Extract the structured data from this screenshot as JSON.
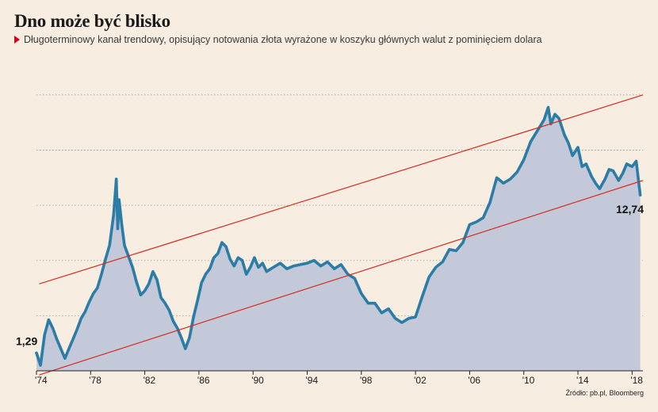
{
  "header": {
    "title": "Dno może być blisko",
    "subtitle": "Długoterminowy kanał trendowy, opisujący notowania złota wyrażone w koszyku głównych walut z pominięciem dolara"
  },
  "footer": {
    "source": "Źródło: pb.pl, Bloomberg"
  },
  "chart_data": {
    "type": "area",
    "title": "Dno może być blisko",
    "xlabel": "",
    "ylabel": "",
    "grid": true,
    "y_axis_labels_shown": false,
    "xlim": [
      1974.0,
      2018.8
    ],
    "ylim": [
      0,
      22
    ],
    "x_ticks": [
      {
        "x": 1974,
        "label": "'74"
      },
      {
        "x": 1978,
        "label": "'78"
      },
      {
        "x": 1982,
        "label": "'82"
      },
      {
        "x": 1986,
        "label": "'86"
      },
      {
        "x": 1990,
        "label": "'90"
      },
      {
        "x": 1994,
        "label": "'94"
      },
      {
        "x": 1998,
        "label": "'98"
      },
      {
        "x": 2002,
        "label": "'02"
      },
      {
        "x": 2006,
        "label": "'06"
      },
      {
        "x": 2010,
        "label": "'10"
      },
      {
        "x": 2014,
        "label": "'14"
      },
      {
        "x": 2018,
        "label": "'18"
      }
    ],
    "y_gridlines": [
      0,
      4,
      8,
      12,
      16,
      20
    ],
    "annotations": [
      {
        "x": 1974.0,
        "y": 1.29,
        "text": "1,29"
      },
      {
        "x": 2018.6,
        "y": 12.74,
        "text": "12,74"
      }
    ],
    "series": [
      {
        "color": "#2b7ca6",
        "fill": "#c3c9d8",
        "x": [
          1974.0,
          1974.3,
          1974.6,
          1974.9,
          1975.2,
          1975.5,
          1975.8,
          1976.1,
          1976.4,
          1976.7,
          1977.0,
          1977.3,
          1977.6,
          1977.9,
          1978.2,
          1978.5,
          1978.8,
          1979.1,
          1979.4,
          1979.7,
          1979.9,
          1980.0,
          1980.1,
          1980.3,
          1980.5,
          1980.8,
          1981.1,
          1981.4,
          1981.7,
          1982.0,
          1982.3,
          1982.6,
          1982.9,
          1983.2,
          1983.5,
          1983.8,
          1984.1,
          1984.4,
          1984.7,
          1985.0,
          1985.3,
          1985.6,
          1985.9,
          1986.2,
          1986.5,
          1986.8,
          1987.1,
          1987.4,
          1987.7,
          1988.0,
          1988.3,
          1988.6,
          1988.9,
          1989.2,
          1989.5,
          1989.8,
          1990.1,
          1990.4,
          1990.7,
          1991.0,
          1991.5,
          1992.0,
          1992.5,
          1993.0,
          1993.5,
          1994.0,
          1994.5,
          1995.0,
          1995.5,
          1996.0,
          1996.5,
          1997.0,
          1997.5,
          1998.0,
          1998.5,
          1999.0,
          1999.5,
          2000.0,
          2000.5,
          2001.0,
          2001.5,
          2002.0,
          2002.5,
          2003.0,
          2003.5,
          2004.0,
          2004.5,
          2005.0,
          2005.5,
          2006.0,
          2006.5,
          2007.0,
          2007.5,
          2008.0,
          2008.5,
          2009.0,
          2009.5,
          2010.0,
          2010.5,
          2011.0,
          2011.5,
          2011.8,
          2012.0,
          2012.3,
          2012.6,
          2013.0,
          2013.3,
          2013.6,
          2014.0,
          2014.3,
          2014.6,
          2015.0,
          2015.3,
          2015.6,
          2016.0,
          2016.3,
          2016.6,
          2017.0,
          2017.3,
          2017.6,
          2018.0,
          2018.3,
          2018.6
        ],
        "y": [
          1.29,
          0.4,
          2.6,
          3.7,
          3.1,
          2.3,
          1.6,
          0.9,
          1.6,
          2.3,
          3.0,
          3.8,
          4.3,
          5.0,
          5.6,
          6.0,
          7.0,
          8.1,
          9.1,
          11.3,
          13.9,
          10.3,
          12.4,
          10.6,
          9.1,
          8.3,
          7.5,
          6.4,
          5.5,
          5.8,
          6.3,
          7.2,
          6.6,
          5.3,
          4.9,
          4.4,
          3.6,
          3.1,
          2.4,
          1.6,
          2.4,
          3.9,
          5.1,
          6.4,
          7.0,
          7.4,
          8.2,
          8.5,
          9.3,
          9.0,
          8.1,
          7.6,
          8.2,
          8.0,
          7.0,
          7.5,
          8.2,
          7.5,
          7.8,
          7.2,
          7.5,
          7.8,
          7.4,
          7.6,
          7.7,
          7.8,
          8.0,
          7.6,
          7.9,
          7.4,
          7.7,
          7.0,
          6.7,
          5.6,
          4.9,
          4.9,
          4.2,
          4.5,
          3.8,
          3.5,
          3.8,
          3.9,
          5.4,
          6.8,
          7.5,
          7.9,
          8.8,
          8.7,
          9.3,
          10.6,
          10.8,
          11.1,
          12.2,
          14.0,
          13.6,
          13.9,
          14.4,
          15.3,
          16.6,
          17.4,
          18.2,
          19.1,
          17.9,
          18.6,
          18.3,
          17.1,
          16.5,
          15.6,
          16.2,
          14.8,
          15.0,
          14.1,
          13.6,
          13.2,
          13.9,
          14.6,
          14.5,
          13.8,
          14.3,
          15.0,
          14.8,
          15.2,
          12.74
        ]
      }
    ],
    "trend_channel": {
      "color": "#d62b20",
      "upper": {
        "x": [
          1974.2,
          2018.8
        ],
        "y": [
          6.3,
          20.0
        ]
      },
      "lower": {
        "x": [
          1974.2,
          2018.8
        ],
        "y": [
          -0.3,
          13.8
        ]
      }
    }
  }
}
